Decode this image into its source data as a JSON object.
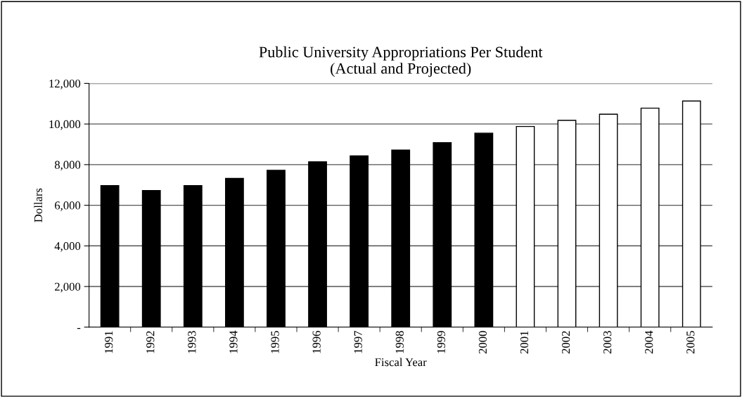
{
  "chart_data": {
    "type": "bar",
    "title": "Public University Appropriations Per Student\n(Actual and Projected)",
    "xlabel": "Fiscal Year",
    "ylabel": "Dollars",
    "categories": [
      "1991",
      "1992",
      "1993",
      "1994",
      "1995",
      "1996",
      "1997",
      "1998",
      "1999",
      "2000",
      "2001",
      "2002",
      "2003",
      "2004",
      "2005"
    ],
    "values": [
      6970,
      6720,
      6970,
      7320,
      7720,
      8140,
      8430,
      8720,
      9080,
      9550,
      9880,
      10180,
      10480,
      10780,
      11130
    ],
    "colors": [
      "#000000",
      "#000000",
      "#000000",
      "#000000",
      "#000000",
      "#000000",
      "#000000",
      "#000000",
      "#000000",
      "#000000",
      "#ffffff",
      "#ffffff",
      "#ffffff",
      "#ffffff",
      "#ffffff"
    ],
    "ylim": [
      0,
      12000
    ],
    "yticks": [
      {
        "value": 0,
        "label": "-"
      },
      {
        "value": 2000,
        "label": "2,000"
      },
      {
        "value": 4000,
        "label": "4,000"
      },
      {
        "value": 6000,
        "label": "6,000"
      },
      {
        "value": 8000,
        "label": "8,000"
      },
      {
        "value": 10000,
        "label": "10,000"
      },
      {
        "value": 12000,
        "label": "12,000"
      }
    ],
    "grid": "y",
    "legend": false
  }
}
